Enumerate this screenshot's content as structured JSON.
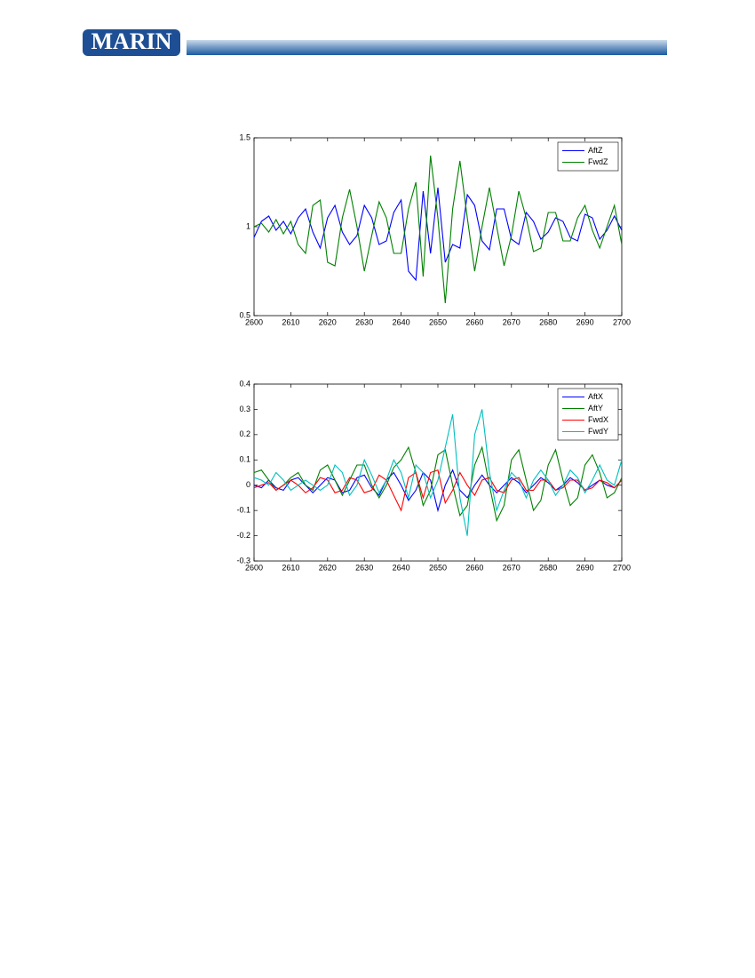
{
  "header": {
    "logo": "MARIN"
  },
  "chart_data": [
    {
      "type": "line",
      "x": [
        2600,
        2602,
        2604,
        2606,
        2608,
        2610,
        2612,
        2614,
        2616,
        2618,
        2620,
        2622,
        2624,
        2626,
        2628,
        2630,
        2632,
        2634,
        2636,
        2638,
        2640,
        2642,
        2644,
        2646,
        2648,
        2650,
        2652,
        2654,
        2656,
        2658,
        2660,
        2662,
        2664,
        2666,
        2668,
        2670,
        2672,
        2674,
        2676,
        2678,
        2680,
        2682,
        2684,
        2686,
        2688,
        2690,
        2692,
        2694,
        2696,
        2698,
        2700
      ],
      "series": [
        {
          "name": "AftZ",
          "color": "#0000ff",
          "values": [
            0.94,
            1.03,
            1.06,
            0.98,
            1.03,
            0.96,
            1.05,
            1.1,
            0.97,
            0.88,
            1.05,
            1.12,
            0.97,
            0.9,
            0.95,
            1.12,
            1.05,
            0.9,
            0.92,
            1.08,
            1.15,
            0.75,
            0.7,
            1.2,
            0.85,
            1.22,
            0.8,
            0.9,
            0.88,
            1.18,
            1.12,
            0.92,
            0.87,
            1.1,
            1.1,
            0.93,
            0.9,
            1.08,
            1.03,
            0.93,
            0.97,
            1.05,
            1.03,
            0.94,
            0.92,
            1.07,
            1.05,
            0.93,
            0.98,
            1.06,
            0.98
          ]
        },
        {
          "name": "FwdZ",
          "color": "#008000",
          "values": [
            1.0,
            1.02,
            0.97,
            1.04,
            0.96,
            1.03,
            0.9,
            0.85,
            1.12,
            1.15,
            0.8,
            0.78,
            1.05,
            1.21,
            1.0,
            0.75,
            0.95,
            1.14,
            1.05,
            0.85,
            0.85,
            1.1,
            1.25,
            0.72,
            1.4,
            1.05,
            0.57,
            1.1,
            1.37,
            1.05,
            0.75,
            1.0,
            1.22,
            1.0,
            0.78,
            0.95,
            1.2,
            1.05,
            0.86,
            0.88,
            1.08,
            1.08,
            0.92,
            0.92,
            1.05,
            1.12,
            0.98,
            0.88,
            1.0,
            1.12,
            0.9
          ]
        }
      ],
      "xlim": [
        2600,
        2700
      ],
      "xticks": [
        2600,
        2610,
        2620,
        2630,
        2640,
        2650,
        2660,
        2670,
        2680,
        2690,
        2700
      ],
      "ylim": [
        0.5,
        1.5
      ],
      "yticks": [
        0.5,
        1,
        1.5
      ],
      "grid": false,
      "legend": "upper right"
    },
    {
      "type": "line",
      "x": [
        2600,
        2602,
        2604,
        2606,
        2608,
        2610,
        2612,
        2614,
        2616,
        2618,
        2620,
        2622,
        2624,
        2626,
        2628,
        2630,
        2632,
        2634,
        2636,
        2638,
        2640,
        2642,
        2644,
        2646,
        2648,
        2650,
        2652,
        2654,
        2656,
        2658,
        2660,
        2662,
        2664,
        2666,
        2668,
        2670,
        2672,
        2674,
        2676,
        2678,
        2680,
        2682,
        2684,
        2686,
        2688,
        2690,
        2692,
        2694,
        2696,
        2698,
        2700
      ],
      "series": [
        {
          "name": "AftX",
          "color": "#0000ff",
          "values": [
            0.0,
            -0.01,
            0.02,
            -0.01,
            -0.02,
            0.02,
            0.03,
            0.0,
            -0.03,
            0.0,
            0.03,
            0.02,
            -0.03,
            -0.02,
            0.03,
            0.04,
            -0.01,
            -0.04,
            0.02,
            0.05,
            0.0,
            -0.06,
            -0.02,
            0.05,
            0.02,
            -0.1,
            0.0,
            0.06,
            -0.02,
            -0.05,
            0.0,
            0.04,
            0.0,
            -0.03,
            0.0,
            0.03,
            0.01,
            -0.03,
            0.0,
            0.03,
            0.01,
            -0.02,
            0.0,
            0.03,
            0.01,
            -0.02,
            0.0,
            0.02,
            0.0,
            -0.01,
            0.02
          ]
        },
        {
          "name": "AftY",
          "color": "#008000",
          "values": [
            0.05,
            0.06,
            0.02,
            -0.02,
            0.0,
            0.03,
            0.05,
            0.0,
            -0.02,
            0.06,
            0.08,
            0.02,
            -0.04,
            0.02,
            0.08,
            0.08,
            0.0,
            -0.05,
            0.0,
            0.07,
            0.1,
            0.15,
            0.05,
            -0.08,
            -0.02,
            0.12,
            0.14,
            0.0,
            -0.12,
            -0.08,
            0.08,
            0.15,
            0.0,
            -0.14,
            -0.08,
            0.1,
            0.14,
            0.02,
            -0.1,
            -0.06,
            0.08,
            0.14,
            0.02,
            -0.08,
            -0.05,
            0.08,
            0.12,
            0.05,
            -0.05,
            -0.03,
            0.03
          ]
        },
        {
          "name": "FwdX",
          "color": "#ff0000",
          "values": [
            -0.01,
            0.0,
            0.01,
            -0.02,
            0.0,
            0.02,
            0.0,
            -0.03,
            -0.01,
            0.03,
            0.02,
            -0.03,
            -0.02,
            0.03,
            0.02,
            -0.03,
            -0.02,
            0.04,
            0.02,
            -0.04,
            -0.1,
            0.03,
            0.05,
            -0.05,
            0.05,
            0.06,
            -0.07,
            -0.02,
            0.05,
            0.0,
            -0.04,
            0.02,
            0.03,
            -0.02,
            -0.03,
            0.02,
            0.03,
            -0.02,
            -0.02,
            0.02,
            0.02,
            -0.02,
            -0.01,
            0.02,
            0.02,
            -0.02,
            -0.01,
            0.02,
            0.01,
            -0.01,
            0.02
          ]
        },
        {
          "name": "FwdY",
          "color": "#00bfbf",
          "values": [
            0.03,
            0.02,
            0.0,
            0.05,
            0.02,
            -0.02,
            0.0,
            0.02,
            0.0,
            -0.02,
            0.0,
            0.08,
            0.05,
            -0.04,
            0.0,
            0.1,
            0.04,
            -0.03,
            0.02,
            0.1,
            0.05,
            -0.05,
            0.08,
            0.05,
            -0.05,
            0.02,
            0.15,
            0.28,
            -0.05,
            -0.2,
            0.2,
            0.3,
            0.05,
            -0.1,
            -0.02,
            0.05,
            0.02,
            -0.05,
            0.02,
            0.06,
            0.02,
            -0.04,
            0.0,
            0.06,
            0.03,
            -0.03,
            0.02,
            0.08,
            0.02,
            0.0,
            0.1
          ]
        }
      ],
      "xlim": [
        2600,
        2700
      ],
      "xticks": [
        2600,
        2610,
        2620,
        2630,
        2640,
        2650,
        2660,
        2670,
        2680,
        2690,
        2700
      ],
      "ylim": [
        -0.3,
        0.4
      ],
      "yticks": [
        -0.3,
        -0.2,
        -0.1,
        0,
        0.1,
        0.2,
        0.3,
        0.4
      ],
      "grid": false,
      "legend": "upper right"
    }
  ]
}
